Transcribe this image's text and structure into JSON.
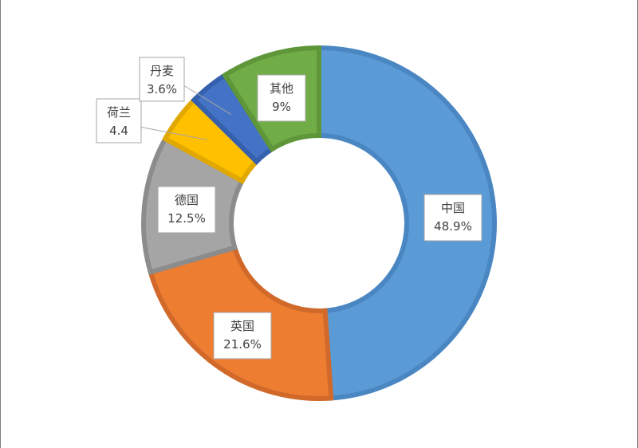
{
  "chart_data": {
    "type": "pie",
    "donut": true,
    "title": "",
    "slices": [
      {
        "name": "中国",
        "value": 48.9,
        "label": "48.9%",
        "color": "#5B9BD5",
        "stroke": "#4A86C2"
      },
      {
        "name": "英国",
        "value": 21.6,
        "label": "21.6%",
        "color": "#ED7D31",
        "stroke": "#D0692A"
      },
      {
        "name": "德国",
        "value": 12.5,
        "label": "12.5%",
        "color": "#A5A5A5",
        "stroke": "#8C8C8C"
      },
      {
        "name": "荷兰",
        "value": 4.4,
        "label": "4.4",
        "color": "#FFC000",
        "stroke": "#E0A800"
      },
      {
        "name": "丹麦",
        "value": 3.6,
        "label": "3.6%",
        "color": "#4472C4",
        "stroke": "#3560AE"
      },
      {
        "name": "其他",
        "value": 9,
        "label": "9%",
        "color": "#70AD47",
        "stroke": "#5E9639"
      }
    ],
    "legend": "none",
    "data_labels": "category-and-value",
    "start": "12 o'clock",
    "direction": "clockwise"
  }
}
